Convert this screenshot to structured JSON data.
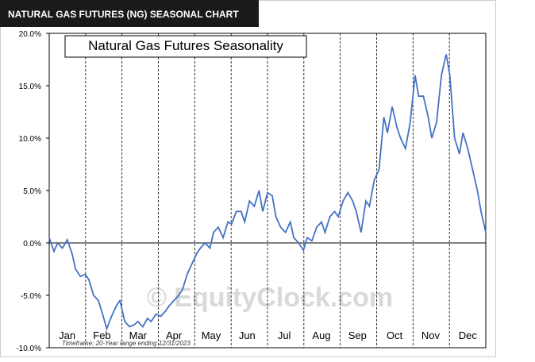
{
  "header": "NATURAL GAS FUTURES (NG) SEASONAL CHART",
  "chart_data": {
    "type": "line",
    "title": "Natural Gas Futures Seasonality",
    "watermark": "© EquityClock.com",
    "footnote": "Timeframe: 20-Year range ending 12/31/2023",
    "x": [
      1,
      5,
      8,
      12,
      16,
      20,
      23,
      27,
      31,
      34,
      38,
      42,
      46,
      49,
      53,
      57,
      60,
      64,
      68,
      72,
      75,
      79,
      83,
      86,
      90,
      94,
      98,
      101,
      105,
      109,
      112,
      116,
      120,
      124,
      127,
      131,
      135,
      138,
      142,
      146,
      150,
      153,
      157,
      161,
      164,
      168,
      172,
      176,
      179,
      183,
      187,
      190,
      194,
      198,
      202,
      205,
      209,
      213,
      216,
      220,
      224,
      228,
      231,
      235,
      239,
      242,
      246,
      250,
      254,
      257,
      261,
      265,
      268,
      272,
      276,
      280,
      283,
      287,
      291,
      294,
      298,
      302,
      306,
      309,
      313,
      317,
      320,
      324,
      328,
      332,
      335,
      339,
      343,
      346,
      350,
      354,
      358,
      361,
      365
    ],
    "series": [
      {
        "color": "#4472c4",
        "values": [
          0.5,
          -0.8,
          0,
          -0.5,
          0.3,
          -1,
          -2.5,
          -3.2,
          -3,
          -3.5,
          -5,
          -5.5,
          -7,
          -8.2,
          -7,
          -6,
          -5.5,
          -7.5,
          -8,
          -7.8,
          -7.5,
          -8,
          -7.2,
          -7.5,
          -6.8,
          -7,
          -6.5,
          -6,
          -5.5,
          -5,
          -4.5,
          -3,
          -2,
          -1,
          -0.5,
          0,
          -0.5,
          1,
          1.5,
          0.5,
          2,
          1.8,
          3,
          3,
          2,
          4,
          3.5,
          5,
          3,
          4.8,
          4.5,
          2.5,
          1.5,
          1,
          2,
          0.5,
          0,
          -0.7,
          0.5,
          0.2,
          1.5,
          2,
          1,
          2.5,
          3,
          2.5,
          4,
          4.8,
          4,
          3,
          1,
          4,
          3.5,
          6,
          7,
          12,
          10.5,
          13,
          11,
          10,
          9,
          11.5,
          16,
          14,
          14,
          12,
          10,
          11.5,
          16,
          18,
          16,
          10,
          8.5,
          10.5,
          9,
          7,
          5,
          3,
          1
        ]
      }
    ],
    "xlim": [
      1,
      365
    ],
    "xticks": [
      {
        "value": 16,
        "label": "Jan"
      },
      {
        "value": 45,
        "label": "Feb"
      },
      {
        "value": 75,
        "label": "Mar"
      },
      {
        "value": 105,
        "label": "Apr"
      },
      {
        "value": 136,
        "label": "May"
      },
      {
        "value": 166,
        "label": "Jun"
      },
      {
        "value": 197,
        "label": "Jul"
      },
      {
        "value": 228,
        "label": "Aug"
      },
      {
        "value": 258,
        "label": "Sep"
      },
      {
        "value": 289,
        "label": "Oct"
      },
      {
        "value": 319,
        "label": "Nov"
      },
      {
        "value": 350,
        "label": "Dec"
      }
    ],
    "ylim": [
      -10,
      20
    ],
    "yticks": [
      {
        "value": -10,
        "label": "-10.0%"
      },
      {
        "value": -5,
        "label": "-5.0%"
      },
      {
        "value": 0,
        "label": "0.0%"
      },
      {
        "value": 5,
        "label": "5.0%"
      },
      {
        "value": 10,
        "label": "10.0%"
      },
      {
        "value": 15,
        "label": "15.0%"
      },
      {
        "value": 20,
        "label": "20.0%"
      }
    ]
  }
}
